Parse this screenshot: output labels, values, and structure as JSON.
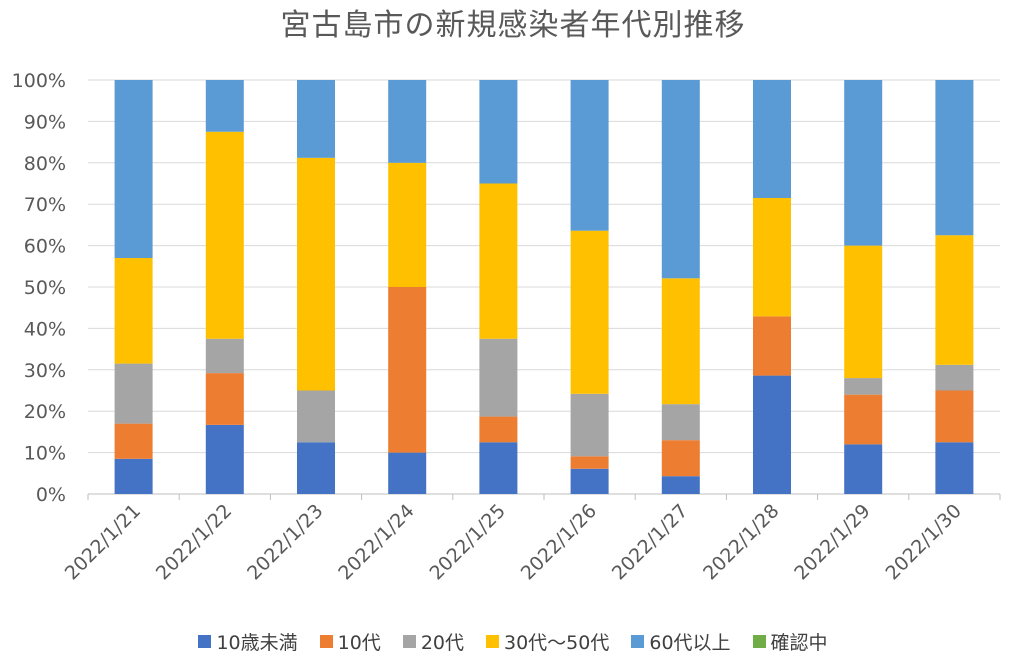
{
  "chart_data": {
    "type": "bar",
    "stacked": "percent",
    "title": "宮古島市の新規感染者年代別推移",
    "categories": [
      "2022/1/21",
      "2022/1/22",
      "2022/1/23",
      "2022/1/24",
      "2022/1/25",
      "2022/1/26",
      "2022/1/27",
      "2022/1/28",
      "2022/1/29",
      "2022/1/30"
    ],
    "ylim": [
      0,
      100
    ],
    "yticks": [
      "0%",
      "10%",
      "20%",
      "30%",
      "40%",
      "50%",
      "60%",
      "70%",
      "80%",
      "90%",
      "100%"
    ],
    "grid": true,
    "legend_position": "bottom",
    "series": [
      {
        "name": "10歳未満",
        "color": "#4472C4",
        "values": [
          8.5,
          16.7,
          12.5,
          10.0,
          12.5,
          6.1,
          4.3,
          28.6,
          12.0,
          12.5
        ]
      },
      {
        "name": "10代",
        "color": "#ED7D31",
        "values": [
          8.5,
          12.5,
          0,
          40.0,
          6.2,
          3.0,
          8.7,
          14.3,
          12.0,
          12.5
        ]
      },
      {
        "name": "20代",
        "color": "#A5A5A5",
        "values": [
          14.5,
          8.3,
          12.5,
          0,
          18.8,
          15.1,
          8.7,
          0,
          4.0,
          6.2
        ]
      },
      {
        "name": "30代～50代",
        "color": "#FFC000",
        "values": [
          25.5,
          50.0,
          56.2,
          30.0,
          37.5,
          39.4,
          30.4,
          28.6,
          32.0,
          31.3
        ]
      },
      {
        "name": "60代以上",
        "color": "#5B9BD5",
        "values": [
          43.0,
          12.5,
          18.8,
          20.0,
          25.0,
          36.4,
          47.9,
          28.5,
          40.0,
          37.5
        ]
      },
      {
        "name": "確認中",
        "color": "#70AD47",
        "values": [
          0,
          0,
          0,
          0,
          0,
          0,
          0,
          0,
          0,
          0
        ]
      }
    ]
  }
}
